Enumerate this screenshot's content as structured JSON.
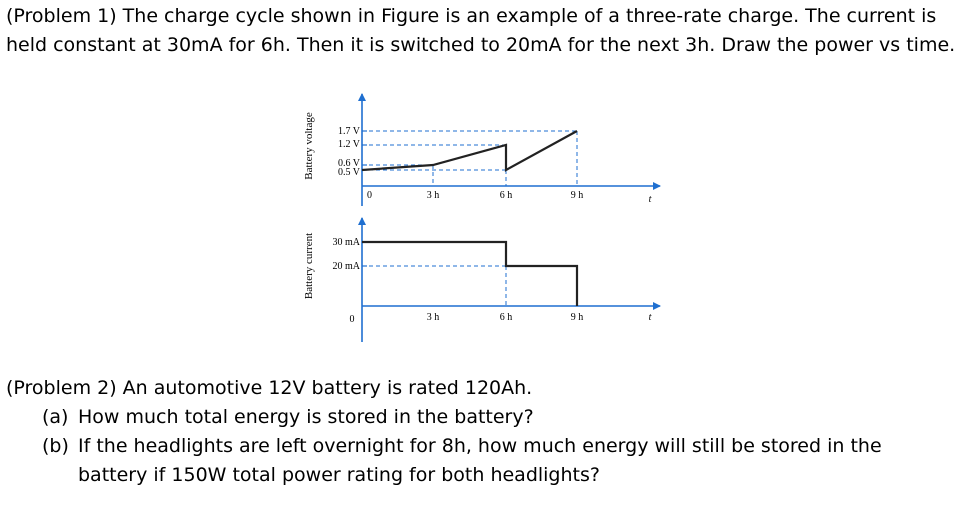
{
  "problem1": {
    "text": "(Problem 1) The charge cycle shown in Figure is an example of a three-rate charge. The current is held constant at 30mA for 6h. Then it is switched to 20mA for the next 3h. Draw the power vs time."
  },
  "figure": {
    "voltage_plot": {
      "ylabel": "Battery voltage",
      "ytick_labels": [
        "1.7 V",
        "1.2 V",
        "0.6 V",
        "0.5 V"
      ],
      "xtick_labels": [
        "0",
        "3 h",
        "6 h",
        "9 h"
      ],
      "t_label": "t",
      "series": [
        {
          "x": [
            0,
            3
          ],
          "y": [
            0.5,
            0.6
          ]
        },
        {
          "x": [
            3,
            6
          ],
          "y": [
            0.6,
            1.2
          ]
        },
        {
          "x": [
            6,
            9
          ],
          "y": [
            0.5,
            1.7
          ]
        }
      ]
    },
    "current_plot": {
      "ylabel": "Battery current",
      "ytick_labels": [
        "30 mA",
        "20 mA"
      ],
      "xtick_labels": [
        "0",
        "3 h",
        "6 h",
        "9 h"
      ],
      "t_label": "t",
      "series": [
        {
          "x": [
            0,
            6
          ],
          "y": [
            30,
            30
          ]
        },
        {
          "x": [
            6,
            6
          ],
          "y": [
            30,
            20
          ]
        },
        {
          "x": [
            6,
            9
          ],
          "y": [
            20,
            20
          ]
        },
        {
          "x": [
            9,
            9
          ],
          "y": [
            20,
            0
          ]
        }
      ]
    }
  },
  "problem2": {
    "intro": "(Problem 2) An automotive 12V battery is rated 120Ah.",
    "parts": [
      {
        "label": "(a)",
        "text": "How much total energy is stored in the battery?"
      },
      {
        "label": "(b)",
        "text": "If the headlights are left overnight for 8h, how much energy will still be stored in the battery if 150W total power rating for both headlights?"
      }
    ]
  }
}
